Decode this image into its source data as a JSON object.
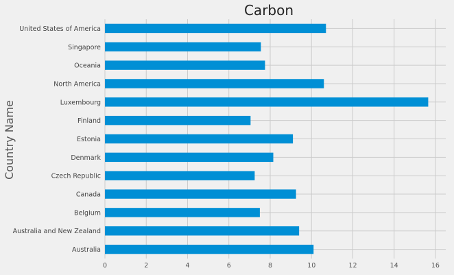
{
  "chart_data": {
    "type": "bar",
    "orientation": "horizontal",
    "title": "Carbon",
    "xlabel": "",
    "ylabel": "Country Name",
    "categories": [
      "Australia",
      "Australia and New Zealand",
      "Belgium",
      "Canada",
      "Czech Republic",
      "Denmark",
      "Estonia",
      "Finland",
      "Luxembourg",
      "North America",
      "Oceania",
      "Singapore",
      "United States of America"
    ],
    "values": [
      10.1,
      9.4,
      7.5,
      9.25,
      7.25,
      8.15,
      9.1,
      7.05,
      15.65,
      10.6,
      7.75,
      7.55,
      10.7
    ],
    "xlim": [
      0,
      16.5
    ],
    "xticks": [
      0,
      2,
      4,
      6,
      8,
      10,
      12,
      14,
      16
    ],
    "grid": true,
    "bar_color": "#008fd5",
    "background_color": "#f0f0f0",
    "legend": "none"
  }
}
